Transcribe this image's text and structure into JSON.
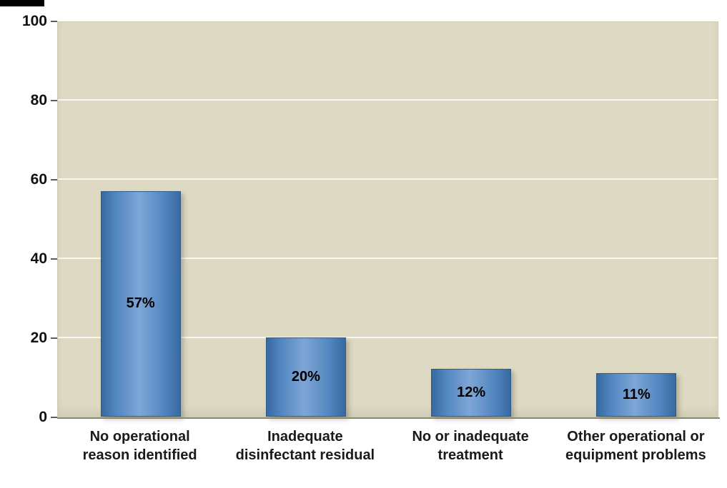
{
  "chart_data": {
    "type": "bar",
    "title": "",
    "xlabel": "",
    "ylabel": "",
    "categories": [
      "No operational reason identified",
      "Inadequate disinfectant residual",
      "No or inadequate treatment",
      "Other operational or equipment problems"
    ],
    "category_lines": [
      [
        "No operational",
        "reason identified"
      ],
      [
        "Inadequate",
        "disinfectant residual"
      ],
      [
        "No or inadequate",
        "treatment"
      ],
      [
        "Other operational or",
        "equipment problems"
      ]
    ],
    "values": [
      57,
      20,
      12,
      11
    ],
    "data_labels": [
      "57%",
      "20%",
      "12%",
      "11%"
    ],
    "ylim": [
      0,
      100
    ],
    "yticks": [
      0,
      20,
      40,
      60,
      80,
      100
    ],
    "grid": true,
    "legend": "none",
    "colors": {
      "plot_background": "#ddd9c3",
      "gridline": "#ffffff",
      "bar_fill": "#4f81bd",
      "bar_border": "#2e5c8a",
      "axis_line": "#8a8675",
      "label_color": "#000000"
    }
  }
}
